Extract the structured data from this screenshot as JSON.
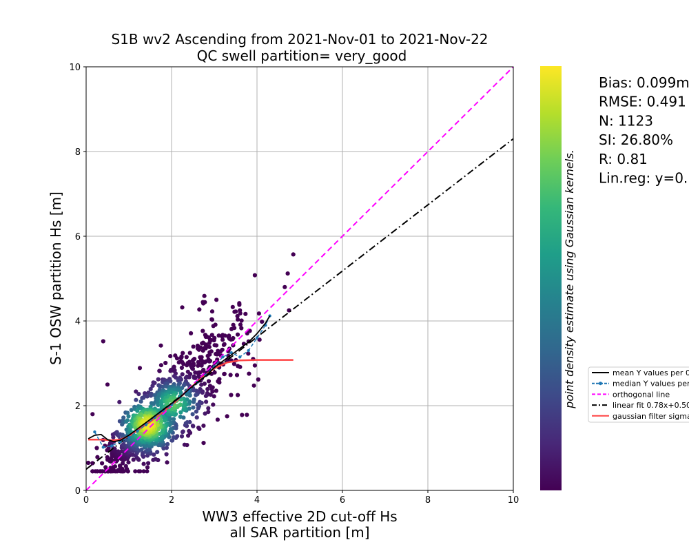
{
  "chart_data": {
    "type": "scatter",
    "title_line1": "S1B wv2 Ascending from 2021-Nov-01 to 2021-Nov-22",
    "title_line2": "QC swell partition= very_good",
    "xlabel_line1": "WW3 effective 2D cut-off Hs",
    "xlabel_line2": "all SAR partition [m]",
    "ylabel": "S-1 OSW partition Hs [m]",
    "xlim": [
      0,
      10
    ],
    "ylim": [
      0,
      10
    ],
    "xticks": [
      "0",
      "2",
      "4",
      "6",
      "8",
      "10"
    ],
    "yticks": [
      "0",
      "2",
      "4",
      "6",
      "8",
      "10"
    ],
    "grid": true,
    "colorbar_label": "point density estimate using Gaussian kernels.",
    "colormap": [
      "#440154",
      "#482878",
      "#3e4a89",
      "#31688e",
      "#26828e",
      "#1f9e89",
      "#35b779",
      "#6ece58",
      "#b5de2b",
      "#fde725"
    ],
    "stats": [
      "Bias: 0.099m",
      "RMSE: 0.491",
      "N: 1123",
      "SI: 26.80%",
      "R: 0.81",
      "Lin.reg: y=0."
    ],
    "legend": [
      {
        "label": "mean Y values per 0",
        "color": "#000000",
        "style": "solid"
      },
      {
        "label": "median Y values per",
        "color": "#1f77b4",
        "style": "dashed-marker"
      },
      {
        "label": "orthogonal line",
        "color": "#ff00ff",
        "style": "dashed"
      },
      {
        "label": "linear fit 0.78x+0.50",
        "color": "#000000",
        "style": "dashdot"
      },
      {
        "label": "gaussian filter sigma",
        "color": "#ff4444",
        "style": "solid"
      }
    ],
    "legend_position": "right, outside plot (clipped)",
    "orthogonal_line": {
      "x": [
        0,
        10
      ],
      "y": [
        0,
        10
      ]
    },
    "linear_fit": {
      "slope": 0.78,
      "intercept": 0.5,
      "x": [
        0,
        10
      ]
    },
    "mean_curve": {
      "x": [
        0.05,
        0.2,
        0.35,
        0.5,
        0.65,
        0.8,
        1.0,
        1.2,
        1.4,
        1.6,
        1.8,
        2.0,
        2.2,
        2.4,
        2.6,
        2.8,
        3.0,
        3.2,
        3.4,
        3.6,
        3.8,
        4.0,
        4.2,
        4.3
      ],
      "y": [
        1.22,
        1.3,
        1.32,
        1.2,
        1.15,
        1.18,
        1.3,
        1.45,
        1.6,
        1.75,
        1.9,
        2.05,
        2.2,
        2.38,
        2.55,
        2.7,
        2.9,
        3.05,
        3.2,
        3.35,
        3.5,
        3.7,
        3.95,
        4.12
      ]
    },
    "median_curve": {
      "x": [
        0.2,
        0.4,
        0.6,
        0.8,
        1.0,
        1.2,
        1.4,
        1.6,
        1.8,
        2.0,
        2.2,
        2.4,
        2.6,
        2.8,
        3.0,
        3.2,
        3.4,
        3.6,
        3.8,
        4.0,
        4.2,
        4.3
      ],
      "y": [
        1.38,
        1.02,
        1.05,
        1.15,
        1.25,
        1.4,
        1.55,
        1.72,
        1.88,
        2.02,
        2.2,
        2.35,
        2.55,
        2.72,
        2.92,
        3.15,
        3.25,
        3.15,
        3.3,
        3.6,
        3.9,
        4.12
      ]
    },
    "gaussian_filter_curve": {
      "x": [
        0.05,
        0.4,
        0.6,
        0.8,
        1.0,
        1.2,
        1.5,
        1.8,
        2.1,
        2.4,
        2.7,
        3.0,
        3.3,
        3.6,
        4.0,
        4.5,
        4.85
      ],
      "y": [
        1.2,
        1.2,
        1.18,
        1.2,
        1.28,
        1.42,
        1.62,
        1.85,
        2.1,
        2.38,
        2.65,
        2.88,
        3.02,
        3.07,
        3.08,
        3.08,
        3.08
      ]
    },
    "point_count": 1123,
    "outlier_points": [
      {
        "x": 0.4,
        "y": 3.52
      },
      {
        "x": 0.15,
        "y": 1.8
      },
      {
        "x": 0.05,
        "y": 0.65
      },
      {
        "x": 0.5,
        "y": 2.5
      },
      {
        "x": 3.95,
        "y": 5.08
      },
      {
        "x": 4.85,
        "y": 5.57
      },
      {
        "x": 4.72,
        "y": 5.12
      },
      {
        "x": 4.65,
        "y": 4.8
      },
      {
        "x": 4.75,
        "y": 4.25
      },
      {
        "x": 3.05,
        "y": 4.5
      },
      {
        "x": 2.25,
        "y": 4.32
      },
      {
        "x": 2.65,
        "y": 4.27
      },
      {
        "x": 3.6,
        "y": 4.25
      },
      {
        "x": 1.75,
        "y": 3.42
      },
      {
        "x": 3.65,
        "y": 1.78
      },
      {
        "x": 3.3,
        "y": 1.75
      },
      {
        "x": 2.75,
        "y": 1.12
      },
      {
        "x": 3.55,
        "y": 2.25
      },
      {
        "x": 3.95,
        "y": 2.95
      },
      {
        "x": 0.25,
        "y": 1.0
      }
    ]
  }
}
